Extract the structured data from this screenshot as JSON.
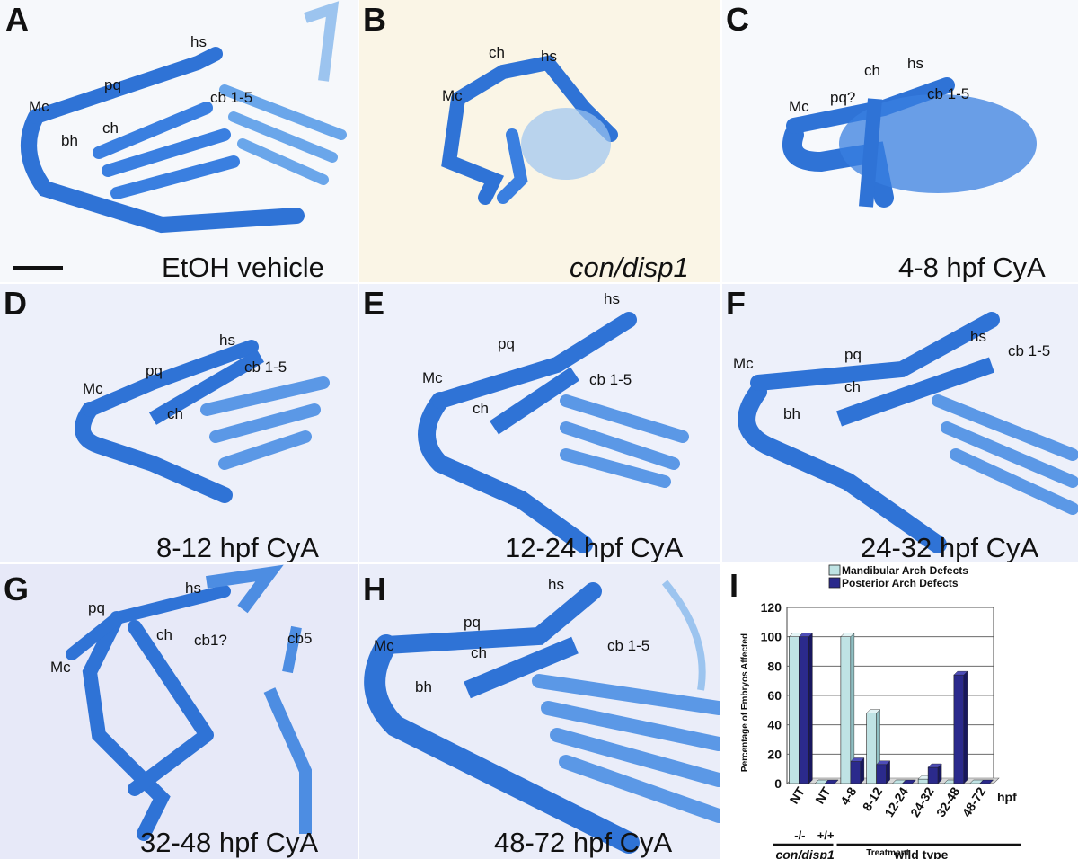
{
  "colors": {
    "cartilage": "#2f73d6",
    "cartilage_light": "#6aa6ea",
    "mandibular_bar": "#bfe3e4",
    "posterior_bar": "#2b2a8c"
  },
  "panels": [
    {
      "letter": "A",
      "caption": "EtOH vehicle",
      "labels": [
        "hs",
        "pq",
        "Mc",
        "cb 1-5",
        "bh",
        "ch"
      ]
    },
    {
      "letter": "B",
      "caption": "con/disp1",
      "labels": [
        "ch",
        "hs",
        "Mc"
      ]
    },
    {
      "letter": "C",
      "caption": "4-8 hpf CyA",
      "labels": [
        "ch",
        "hs",
        "Mc",
        "pq?",
        "cb 1-5"
      ]
    },
    {
      "letter": "D",
      "caption": "8-12 hpf CyA",
      "labels": [
        "hs",
        "cb 1-5",
        "pq",
        "Mc",
        "ch"
      ]
    },
    {
      "letter": "E",
      "caption": "12-24 hpf CyA",
      "labels": [
        "hs",
        "pq",
        "Mc",
        "cb 1-5",
        "ch"
      ]
    },
    {
      "letter": "F",
      "caption": "24-32 hpf CyA",
      "labels": [
        "hs",
        "cb 1-5",
        "Mc",
        "pq",
        "ch",
        "bh"
      ]
    },
    {
      "letter": "G",
      "caption": "32-48 hpf CyA",
      "labels": [
        "hs",
        "pq",
        "ch",
        "cb1?",
        "cb5",
        "Mc"
      ]
    },
    {
      "letter": "H",
      "caption": "48-72 hpf CyA",
      "labels": [
        "hs",
        "pq",
        "Mc",
        "ch",
        "cb 1-5",
        "bh"
      ]
    }
  ],
  "chart_letter": "I",
  "chart_data": {
    "type": "bar",
    "title": "",
    "ylabel": "Percentage of Embryos Affected",
    "xlabel": "Treatment",
    "ylim": [
      0,
      120
    ],
    "yticks": [
      0,
      20,
      40,
      60,
      80,
      100,
      120
    ],
    "categories": [
      "NT",
      "NT",
      "4-8",
      "8-12",
      "12-24",
      "24-32",
      "32-48",
      "48-72"
    ],
    "genotype_labels": [
      "-/-",
      "+/+"
    ],
    "unit_label": "hpf",
    "group_labels": [
      "con/disp1",
      "wild type"
    ],
    "grid": true,
    "legend_position": "top",
    "series": [
      {
        "name": "Mandibular Arch Defects",
        "values": [
          100,
          0,
          100,
          48,
          0,
          3,
          0,
          0
        ]
      },
      {
        "name": "Posterior Arch Defects",
        "values": [
          100,
          0,
          15,
          13,
          0,
          11,
          74,
          0
        ]
      }
    ]
  }
}
